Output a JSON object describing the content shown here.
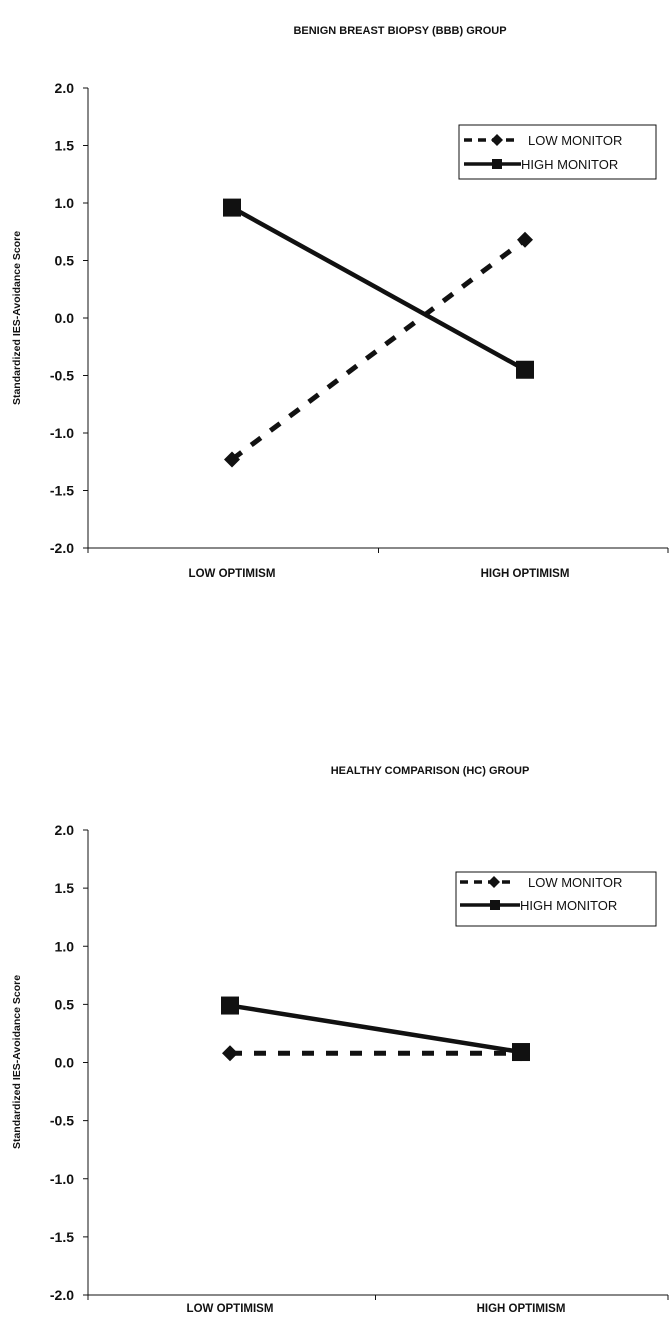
{
  "chart_data": [
    {
      "type": "line",
      "title": "BENIGN BREAST BIOPSY (BBB) GROUP",
      "xlabel": "",
      "ylabel": "Standardized IES-Avoidance Score",
      "categories": [
        "LOW OPTIMISM",
        "HIGH OPTIMISM"
      ],
      "yticks": [
        "2.0",
        "1.5",
        "1.0",
        "0.5",
        "0.0",
        "-0.5",
        "-1.0",
        "-1.5",
        "-2.0"
      ],
      "ylim": [
        -2.0,
        2.0
      ],
      "grid": false,
      "legend_position": "top-right",
      "series": [
        {
          "name": "LOW MONITOR",
          "values": [
            -1.23,
            0.68
          ],
          "line_style": "dashed",
          "marker": "diamond",
          "color": "#111111"
        },
        {
          "name": "HIGH MONITOR",
          "values": [
            0.96,
            -0.45
          ],
          "line_style": "solid",
          "marker": "square",
          "color": "#111111"
        }
      ]
    },
    {
      "type": "line",
      "title": "HEALTHY COMPARISON (HC) GROUP",
      "xlabel": "",
      "ylabel": "Standardized IES-Avoidance Score",
      "categories": [
        "LOW OPTIMISM",
        "HIGH OPTIMISM"
      ],
      "yticks": [
        "2.0",
        "1.5",
        "1.0",
        "0.5",
        "0.0",
        "-0.5",
        "-1.0",
        "-1.5",
        "-2.0"
      ],
      "ylim": [
        -2.0,
        2.0
      ],
      "grid": false,
      "legend_position": "top-right",
      "series": [
        {
          "name": "LOW MONITOR",
          "values": [
            0.08,
            0.08
          ],
          "line_style": "dashed",
          "marker": "diamond",
          "color": "#111111"
        },
        {
          "name": "HIGH MONITOR",
          "values": [
            0.49,
            0.09
          ],
          "line_style": "solid",
          "marker": "square",
          "color": "#111111"
        }
      ]
    }
  ]
}
